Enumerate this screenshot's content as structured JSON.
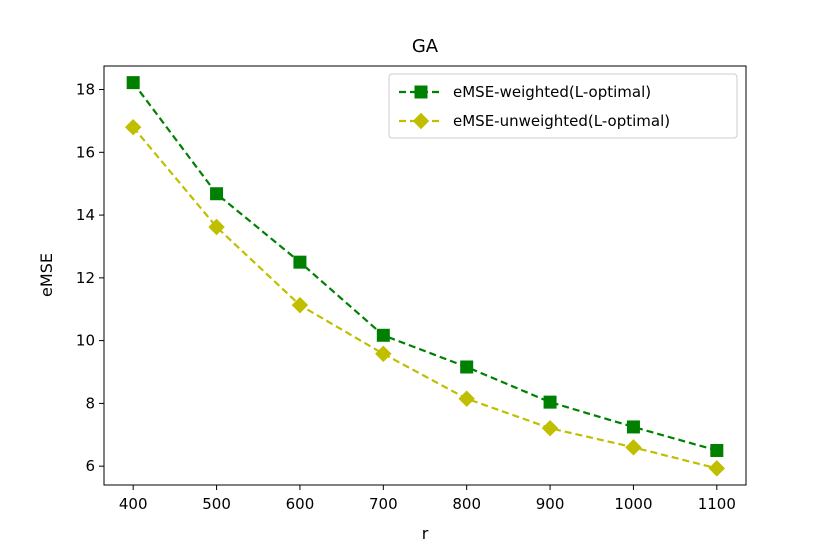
{
  "chart_data": {
    "type": "line",
    "title": "GA",
    "xlabel": "r",
    "ylabel": "eMSE",
    "x": [
      400,
      500,
      600,
      700,
      800,
      900,
      1000,
      1100
    ],
    "xlim": [
      365,
      1135
    ],
    "ylim": [
      5.4,
      18.75
    ],
    "xticks": [
      "400",
      "500",
      "600",
      "700",
      "800",
      "900",
      "1000",
      "1100"
    ],
    "yticks": [
      "6",
      "8",
      "10",
      "12",
      "14",
      "16",
      "18"
    ],
    "grid": false,
    "legend_position": "top-right",
    "series": [
      {
        "name": "eMSE-weighted(L-optimal)",
        "values": [
          18.22,
          14.68,
          12.5,
          10.17,
          9.16,
          8.04,
          7.25,
          6.5
        ],
        "color": "#008000",
        "marker": "square",
        "linestyle": "dashed"
      },
      {
        "name": "eMSE-unweighted(L-optimal)",
        "values": [
          16.8,
          13.62,
          11.13,
          9.58,
          8.15,
          7.21,
          6.6,
          5.93
        ],
        "color": "#bfbf00",
        "marker": "diamond",
        "linestyle": "dashed"
      }
    ]
  }
}
